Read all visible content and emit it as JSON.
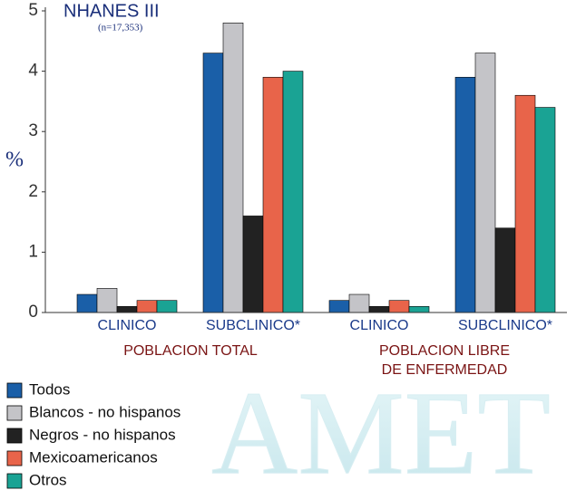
{
  "chart_data": {
    "type": "bar",
    "title": "NHANES III",
    "subtitle": "(n=17,353)",
    "y_label": "%",
    "watermark": "AMET",
    "categories": [
      "CLINICO",
      "SUBCLINICO*",
      "CLINICO",
      "SUBCLINICO*"
    ],
    "group_labels": [
      [
        "POBLACION TOTAL"
      ],
      [
        "POBLACION LIBRE",
        "DE ENFERMEDAD"
      ]
    ],
    "series": [
      {
        "name": "Todos",
        "color": "#1a5fa8",
        "values": [
          0.3,
          4.3,
          0.2,
          3.9
        ]
      },
      {
        "name": "Blancos - no hispanos",
        "color": "#c4c4c8",
        "values": [
          0.4,
          4.8,
          0.3,
          4.3
        ]
      },
      {
        "name": "Negros - no hispanos",
        "color": "#222222",
        "values": [
          0.1,
          1.6,
          0.1,
          1.4
        ]
      },
      {
        "name": "Mexicoamericanos",
        "color": "#e8644a",
        "values": [
          0.2,
          3.9,
          0.2,
          3.6
        ]
      },
      {
        "name": "Otros",
        "color": "#1aa394",
        "values": [
          0.2,
          4.0,
          0.1,
          3.4
        ]
      }
    ],
    "ylim": [
      0,
      5
    ],
    "yticks": [
      0,
      1,
      2,
      3,
      4,
      5
    ],
    "legend": "bottom-left"
  }
}
